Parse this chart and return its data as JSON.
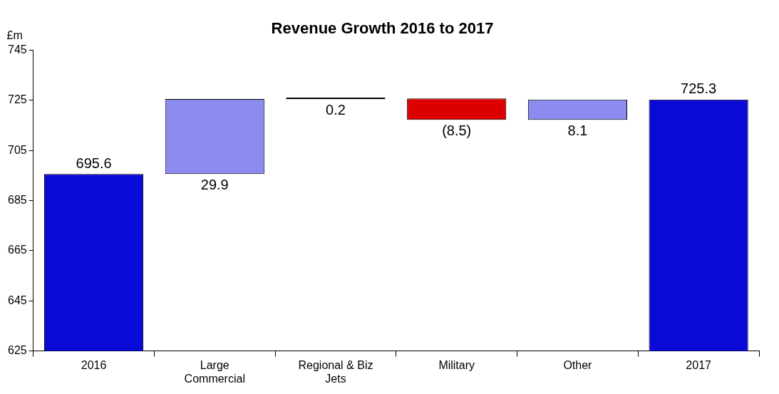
{
  "chart_data": {
    "type": "bar",
    "title": "Revenue Growth 2016 to 2017",
    "ylabel": "£m",
    "categories": [
      "2016",
      "Large Commercial",
      "Regional & Biz Jets",
      "Military",
      "Other",
      "2017"
    ],
    "values": [
      695.6,
      29.9,
      0.2,
      -8.5,
      8.1,
      725.3
    ],
    "base": [
      null,
      695.6,
      725.5,
      725.7,
      717.2,
      null
    ],
    "colors": [
      "#0a0ad8",
      "#8c8cf0",
      "#000000",
      "#dd0000",
      "#8c8cf0",
      "#0a0ad8"
    ],
    "value_labels": [
      "695.6",
      "29.9",
      "0.2",
      "(8.5)",
      "8.1",
      "725.3"
    ],
    "ylim": [
      625,
      745
    ],
    "yticks": [
      625,
      645,
      665,
      685,
      705,
      725,
      745
    ],
    "grid": false,
    "legend": false
  }
}
